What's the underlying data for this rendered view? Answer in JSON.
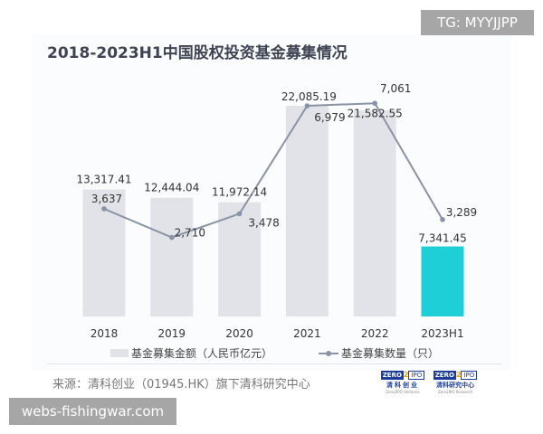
{
  "watermark_top": "TG: MYYJJPP",
  "watermark_bottom": "webs-fishingwar.com",
  "chart_data": {
    "type": "bar+line",
    "title": "2018-2023H1中国股权投资基金募集情况",
    "categories": [
      "2018",
      "2019",
      "2020",
      "2021",
      "2022",
      "2023H1"
    ],
    "series": [
      {
        "name": "基金募集金额（人民币亿元）",
        "type": "bar",
        "values": [
          13317.41,
          12444.04,
          11972.14,
          22085.19,
          21582.55,
          7341.45
        ],
        "labels": [
          "13,317.41",
          "12,444.04",
          "11,972.14",
          "22,085.19",
          "21,582.55",
          "7,341.45"
        ],
        "color": "#e1e3e8",
        "highlight_color": "#1ecfd8"
      },
      {
        "name": "基金募集数量（只）",
        "type": "line",
        "values": [
          3637,
          2710,
          3478,
          6979,
          7061,
          3289
        ],
        "labels": [
          "3,637",
          "2,710",
          "3,478",
          "6,979",
          "7,061",
          "3,289"
        ],
        "color": "#8a93a6"
      }
    ],
    "grid": false,
    "legend": "bottom"
  },
  "source": "来源：清科创业（01945.HK）旗下清科研究中心",
  "logos": [
    {
      "zero": "ZERO",
      "two": "2",
      "ipo": "IPO",
      "cn": "清科创业",
      "en": "Zero2IPO Ventures"
    },
    {
      "zero": "ZERO",
      "two": "2",
      "ipo": "IPO",
      "cn": "清科研究中心",
      "en": "Zero2IPO Research"
    }
  ]
}
